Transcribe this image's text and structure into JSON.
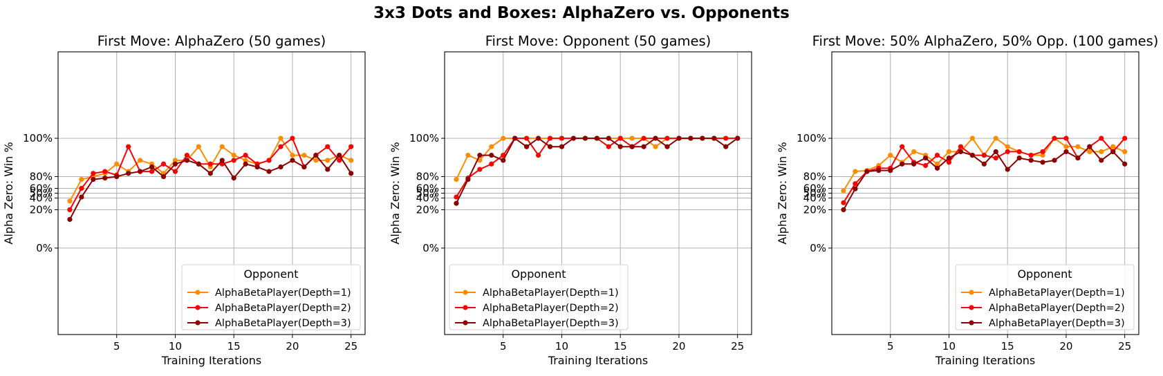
{
  "figure_title": "3x3 Dots and Boxes: AlphaZero vs. Opponents",
  "chart_data": [
    {
      "type": "line",
      "title": "First Move: AlphaZero (50 games)",
      "xlabel": "Training Iterations",
      "ylabel": "Alpha Zero: Win %",
      "y_scale": "logit",
      "xlim": [
        0,
        26.2
      ],
      "x_ticks": [
        5,
        10,
        15,
        20,
        25
      ],
      "y_ticks": [
        0,
        20,
        40,
        50,
        60,
        80,
        100
      ],
      "y_tick_labels": [
        "0%",
        "20%",
        "40%",
        "50%",
        "60%",
        "80%",
        "100%"
      ],
      "grid": true,
      "legend_title": "Opponent",
      "legend_position": "lower-right",
      "x": [
        1,
        2,
        3,
        4,
        5,
        6,
        7,
        8,
        9,
        10,
        11,
        12,
        13,
        14,
        15,
        16,
        17,
        18,
        19,
        20,
        21,
        22,
        23,
        24,
        25
      ],
      "series": [
        {
          "name": "AlphaBetaPlayer(Depth=1)",
          "color": "#ff8c00",
          "values": [
            34,
            76,
            80,
            84,
            92,
            86,
            94,
            92,
            84,
            94,
            94,
            98,
            90,
            98,
            96,
            94,
            92,
            94,
            100,
            96,
            96,
            94,
            94,
            96,
            94
          ]
        },
        {
          "name": "AlphaBetaPlayer(Depth=2)",
          "color": "#ff0000",
          "values": [
            20,
            60,
            84,
            86,
            82,
            98,
            86,
            86,
            92,
            86,
            96,
            92,
            92,
            92,
            94,
            96,
            92,
            94,
            98,
            100,
            90,
            96,
            98,
            94,
            98
          ]
        },
        {
          "name": "AlphaBetaPlayer(Depth=3)",
          "color": "#8b0000",
          "values": [
            10,
            42,
            76,
            78,
            80,
            84,
            86,
            90,
            80,
            92,
            94,
            92,
            84,
            94,
            78,
            92,
            90,
            86,
            90,
            94,
            90,
            96,
            88,
            96,
            84
          ]
        }
      ]
    },
    {
      "type": "line",
      "title": "First Move: Opponent (50 games)",
      "xlabel": "Training Iterations",
      "ylabel": "Alpha Zero: Win %",
      "y_scale": "logit",
      "xlim": [
        0,
        26.2
      ],
      "x_ticks": [
        5,
        10,
        15,
        20,
        25
      ],
      "y_ticks": [
        0,
        20,
        40,
        50,
        60,
        80,
        100
      ],
      "y_tick_labels": [
        "0%",
        "20%",
        "40%",
        "50%",
        "60%",
        "80%",
        "100%"
      ],
      "grid": true,
      "legend_title": "Opponent",
      "legend_position": "lower-left",
      "x": [
        1,
        2,
        3,
        4,
        5,
        6,
        7,
        8,
        9,
        10,
        11,
        12,
        13,
        14,
        15,
        16,
        17,
        18,
        19,
        20,
        21,
        22,
        23,
        24,
        25
      ],
      "series": [
        {
          "name": "AlphaBetaPlayer(Depth=1)",
          "color": "#ff8c00",
          "values": [
            76,
            96,
            94,
            98,
            100,
            100,
            100,
            100,
            100,
            100,
            100,
            100,
            100,
            100,
            100,
            100,
            100,
            98,
            100,
            100,
            100,
            100,
            100,
            100,
            100
          ]
        },
        {
          "name": "AlphaBetaPlayer(Depth=2)",
          "color": "#ff0000",
          "values": [
            42,
            78,
            88,
            92,
            96,
            100,
            100,
            96,
            100,
            100,
            100,
            100,
            100,
            98,
            100,
            98,
            100,
            100,
            100,
            100,
            100,
            100,
            100,
            100,
            100
          ]
        },
        {
          "name": "AlphaBetaPlayer(Depth=3)",
          "color": "#8b0000",
          "values": [
            30,
            76,
            96,
            96,
            94,
            100,
            98,
            100,
            98,
            98,
            100,
            100,
            100,
            100,
            98,
            98,
            98,
            100,
            98,
            100,
            100,
            100,
            100,
            98,
            100
          ]
        }
      ]
    },
    {
      "type": "line",
      "title": "First Move: 50% AlphaZero, 50% Opp. (100 games)",
      "xlabel": "Training Iterations",
      "ylabel": "Alpha Zero: Win %",
      "y_scale": "logit",
      "xlim": [
        0,
        26.2
      ],
      "x_ticks": [
        5,
        10,
        15,
        20,
        25
      ],
      "y_ticks": [
        0,
        20,
        40,
        50,
        60,
        80,
        100
      ],
      "y_tick_labels": [
        "0%",
        "20%",
        "40%",
        "50%",
        "60%",
        "80%",
        "100%"
      ],
      "grid": true,
      "legend_title": "Opponent",
      "legend_position": "lower-right",
      "x": [
        1,
        2,
        3,
        4,
        5,
        6,
        7,
        8,
        9,
        10,
        11,
        12,
        13,
        14,
        15,
        16,
        17,
        18,
        19,
        20,
        21,
        22,
        23,
        24,
        25
      ],
      "series": [
        {
          "name": "AlphaBetaPlayer(Depth=1)",
          "color": "#ff8c00",
          "values": [
            55,
            86,
            87,
            91,
            96,
            93,
            97,
            96,
            92,
            97,
            97,
            99,
            96,
            99,
            98,
            97,
            96,
            96,
            100,
            98,
            98,
            97,
            97,
            98,
            97
          ]
        },
        {
          "name": "AlphaBetaPlayer(Depth=2)",
          "color": "#ff0000",
          "values": [
            31,
            69,
            86,
            89,
            89,
            98,
            93,
            91,
            96,
            93,
            98,
            96,
            96,
            95,
            97,
            97,
            96,
            97,
            99,
            100,
            95,
            98,
            99,
            97,
            99
          ]
        },
        {
          "name": "AlphaBetaPlayer(Depth=3)",
          "color": "#8b0000",
          "values": [
            20,
            59,
            86,
            87,
            87,
            92,
            92,
            95,
            89,
            95,
            97,
            96,
            92,
            97,
            88,
            95,
            94,
            93,
            94,
            97,
            95,
            98,
            94,
            97,
            92
          ]
        }
      ]
    }
  ]
}
